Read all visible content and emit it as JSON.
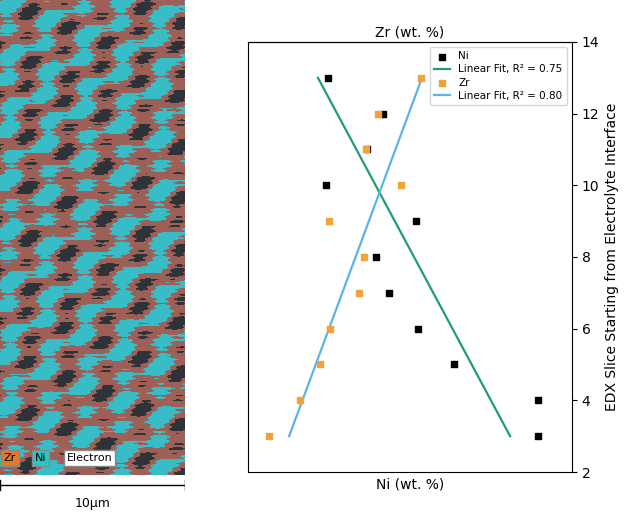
{
  "chart_data": {
    "type": "scatter",
    "title_top_axis": "Zr (wt. %)",
    "x_label": "Ni (wt. %)",
    "y_label": "EDX Slice Starting from Electrolyte Interface",
    "xlim": [
      0,
      100
    ],
    "ylim": [
      2,
      14
    ],
    "yticks": [
      2,
      4,
      6,
      8,
      10,
      12,
      14
    ],
    "tick_labels": "y",
    "grid": false,
    "legend": "upper right",
    "series": [
      {
        "name": "Ni",
        "type": "scatter",
        "marker": "square",
        "color": "#000000",
        "x": [
          24.7,
          41.7,
          36.7,
          24.1,
          51.9,
          39.5,
          43.5,
          52.5,
          63.6,
          89.5,
          89.5
        ],
        "values": [
          13,
          12,
          11,
          10,
          9,
          8,
          7,
          6,
          5,
          4,
          3
        ]
      },
      {
        "name": "Linear Fit, R² = 0.75",
        "type": "line",
        "line_style": "solid",
        "color": "#1f9e6e",
        "x": [
          21.6,
          80.9
        ],
        "values": [
          13,
          3
        ]
      },
      {
        "name": "Zr",
        "type": "scatter",
        "marker": "square",
        "color": "#f2a23a",
        "x": [
          53.4,
          40.1,
          36.4,
          47.2,
          25.0,
          35.8,
          34.3,
          25.3,
          22.2,
          16.0,
          6.5
        ],
        "values": [
          13,
          12,
          11,
          10,
          9,
          8,
          7,
          6,
          5,
          4,
          3
        ]
      },
      {
        "name": "Linear Fit, R² = 0.80",
        "type": "line",
        "line_style": "solid",
        "color": "#5ab4e8",
        "x": [
          12.7,
          53.7
        ],
        "values": [
          3,
          13
        ]
      }
    ]
  },
  "image": {
    "map_labels": [
      "Zr",
      "Ni",
      "Electron"
    ],
    "map_colors": [
      "#e07b2a",
      "#2ec4c4",
      "#ffffff"
    ],
    "scale_bar_label": "10µm"
  }
}
